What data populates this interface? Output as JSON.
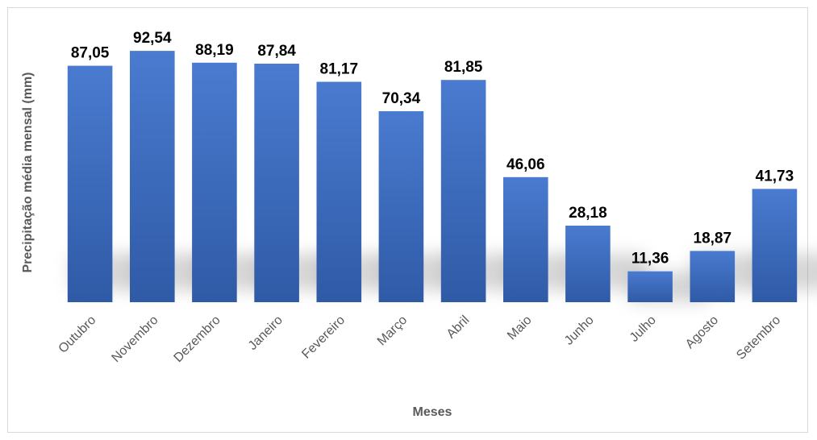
{
  "chart_data": {
    "type": "bar",
    "categories": [
      "Outubro",
      "Novembro",
      "Dezembro",
      "Janeiro",
      "Fevereiro",
      "Março",
      "Abril",
      "Maio",
      "Junho",
      "Julho",
      "Agosto",
      "Setembro"
    ],
    "values": [
      87.05,
      92.54,
      88.19,
      87.84,
      81.17,
      70.34,
      81.85,
      46.06,
      28.18,
      11.36,
      18.87,
      41.73
    ],
    "value_labels": [
      "87,05",
      "92,54",
      "88,19",
      "87,84",
      "81,17",
      "70,34",
      "81,85",
      "46,06",
      "28,18",
      "11,36",
      "18,87",
      "41,73"
    ],
    "xlabel": "Meses",
    "ylabel": "Precipitação média mensal (mm)",
    "ylim": [
      0,
      100
    ],
    "grid": false,
    "legend": "none",
    "bar_color": "#4472c4"
  }
}
